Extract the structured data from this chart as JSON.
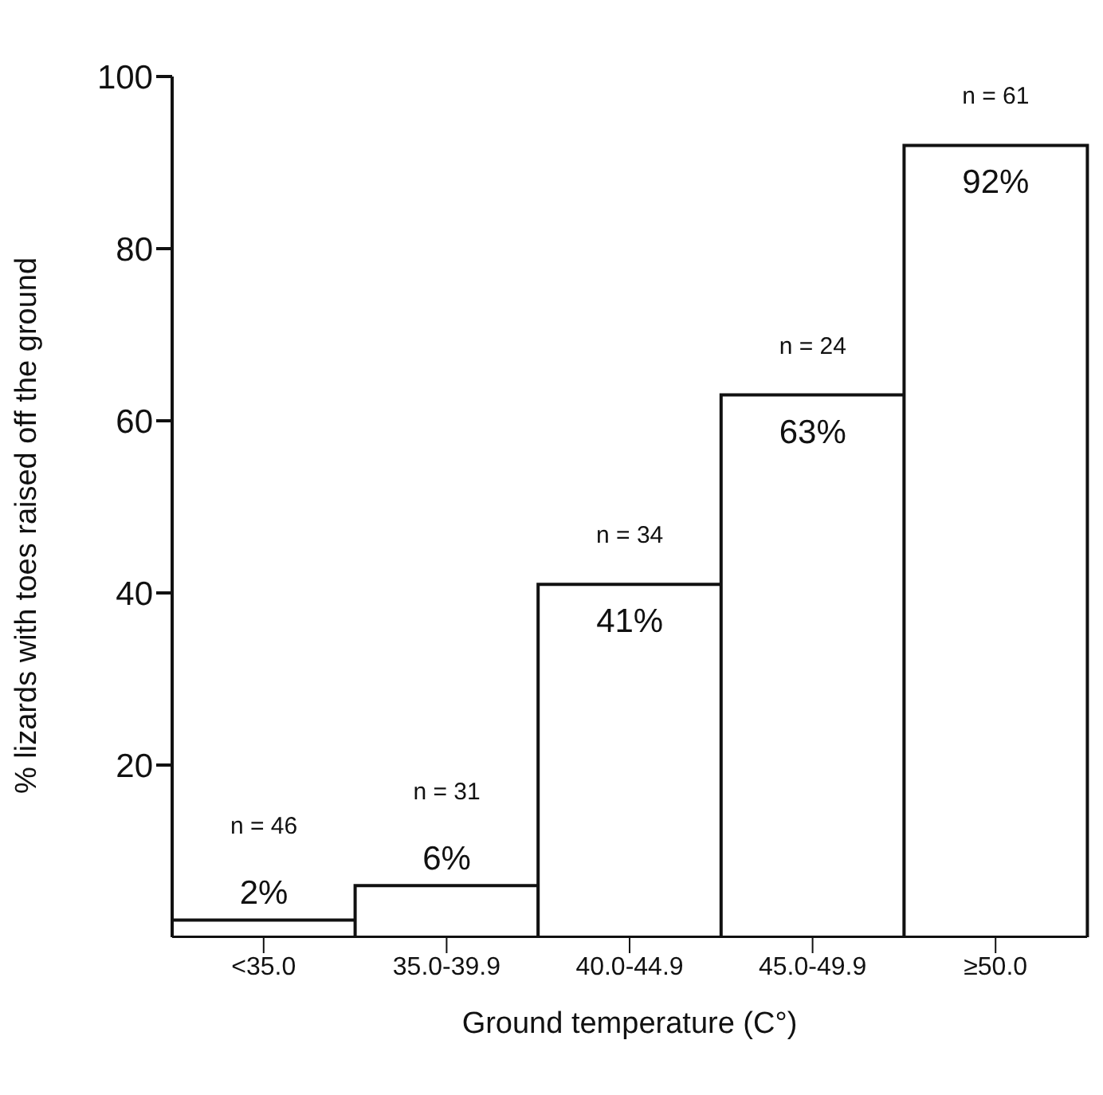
{
  "chart_data": {
    "type": "bar",
    "xlabel": "Ground temperature (C°)",
    "ylabel": "% lizards with toes raised off the ground",
    "categories": [
      "<35.0",
      "35.0-39.9",
      "40.0-44.9",
      "45.0-49.9",
      "≥50.0"
    ],
    "values": [
      2,
      6,
      41,
      63,
      92
    ],
    "value_labels": [
      "2%",
      "6%",
      "41%",
      "63%",
      "92%"
    ],
    "color": "#ffffff",
    "ylim": [
      0,
      100
    ],
    "yticks": [
      20,
      40,
      60,
      80,
      100
    ],
    "grid": false,
    "legend": false,
    "annotations": [
      "n = 46",
      "n = 31",
      "n = 34",
      "n = 24",
      "n = 61"
    ]
  }
}
